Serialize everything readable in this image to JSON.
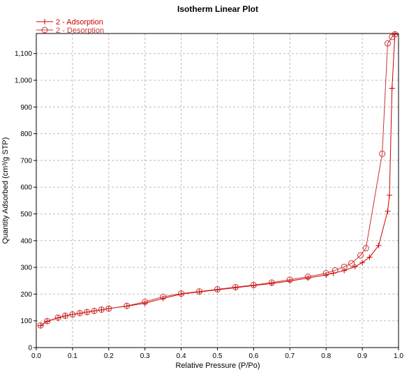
{
  "chart_data": {
    "type": "line",
    "title": "Isotherm Linear Plot",
    "xlabel": "Relative Pressure (P/Po)",
    "ylabel": "Quantity Adsorbed (cm³/g STP)",
    "xlim": [
      0,
      1.0
    ],
    "ylim": [
      0,
      1175
    ],
    "x_ticks": [
      "0.0",
      "0.1",
      "0.2",
      "0.3",
      "0.4",
      "0.5",
      "0.6",
      "0.7",
      "0.8",
      "0.9",
      "1.0"
    ],
    "y_ticks": [
      "0",
      "100",
      "200",
      "300",
      "400",
      "500",
      "600",
      "700",
      "800",
      "900",
      "1,000",
      "1,100"
    ],
    "grid": true,
    "legend_position": "top-left",
    "series": [
      {
        "name": "2 - Adsorption",
        "color": "#cc0000",
        "marker": "plus",
        "points": [
          [
            0.012,
            82
          ],
          [
            0.03,
            98
          ],
          [
            0.06,
            111
          ],
          [
            0.08,
            118
          ],
          [
            0.1,
            124
          ],
          [
            0.12,
            128
          ],
          [
            0.14,
            133
          ],
          [
            0.16,
            137
          ],
          [
            0.18,
            141
          ],
          [
            0.2,
            146
          ],
          [
            0.25,
            155
          ],
          [
            0.3,
            166
          ],
          [
            0.35,
            184
          ],
          [
            0.4,
            200
          ],
          [
            0.45,
            208
          ],
          [
            0.5,
            216
          ],
          [
            0.55,
            224
          ],
          [
            0.6,
            232
          ],
          [
            0.65,
            240
          ],
          [
            0.7,
            249
          ],
          [
            0.75,
            260
          ],
          [
            0.8,
            272
          ],
          [
            0.82,
            278
          ],
          [
            0.85,
            288
          ],
          [
            0.88,
            303
          ],
          [
            0.9,
            318
          ],
          [
            0.92,
            338
          ],
          [
            0.945,
            382
          ],
          [
            0.97,
            510
          ],
          [
            0.975,
            570
          ],
          [
            0.982,
            970
          ],
          [
            0.99,
            1172
          ]
        ]
      },
      {
        "name": "2 - Desorption",
        "color": "#cc3333",
        "marker": "circle",
        "points": [
          [
            0.99,
            1172
          ],
          [
            0.982,
            1162
          ],
          [
            0.97,
            1138
          ],
          [
            0.955,
            725
          ],
          [
            0.91,
            372
          ],
          [
            0.895,
            345
          ],
          [
            0.87,
            315
          ],
          [
            0.85,
            302
          ],
          [
            0.825,
            289
          ],
          [
            0.8,
            278
          ],
          [
            0.75,
            265
          ],
          [
            0.7,
            254
          ],
          [
            0.65,
            243
          ],
          [
            0.6,
            234
          ],
          [
            0.55,
            226
          ],
          [
            0.5,
            218
          ],
          [
            0.45,
            210
          ],
          [
            0.4,
            202
          ],
          [
            0.35,
            190
          ],
          [
            0.3,
            171
          ],
          [
            0.25,
            156
          ],
          [
            0.2,
            146
          ],
          [
            0.18,
            142
          ],
          [
            0.16,
            137
          ],
          [
            0.14,
            133
          ],
          [
            0.12,
            129
          ],
          [
            0.1,
            124
          ],
          [
            0.08,
            119
          ],
          [
            0.06,
            112
          ],
          [
            0.03,
            99
          ],
          [
            0.012,
            83
          ]
        ]
      }
    ]
  }
}
